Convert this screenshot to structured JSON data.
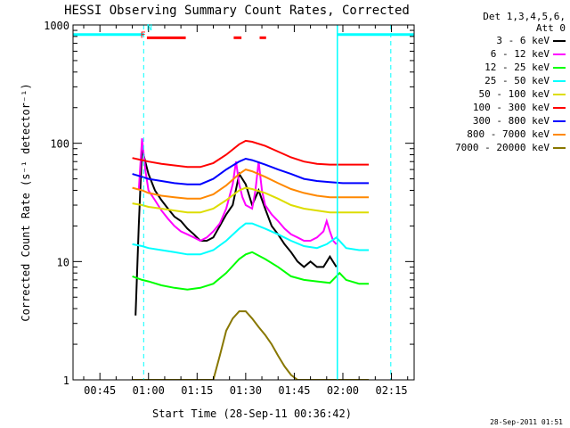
{
  "chart_data": {
    "type": "line",
    "title": "HESSI Observing Summary Count Rates, Corrected",
    "xlabel": "Start Time (28-Sep-11 00:36:42)",
    "ylabel": "Corrected Count Rate (s⁻¹ detector⁻¹)",
    "yscale": "log",
    "ylim": [
      1,
      1000
    ],
    "xlim_minutes": [
      36.7,
      142
    ],
    "x_tick_labels": [
      "00:45",
      "01:00",
      "01:15",
      "01:30",
      "01:45",
      "02:00",
      "02:15"
    ],
    "x_tick_minutes": [
      45,
      60,
      75,
      90,
      105,
      120,
      135
    ],
    "y_tick_labels": [
      "1",
      "10",
      "100",
      "1000"
    ],
    "y_tick_values": [
      1,
      10,
      100,
      1000
    ],
    "legend_header": [
      "Det 1,3,4,5,6,",
      "Att 0"
    ],
    "legend_position": "right",
    "series": [
      {
        "name": "3 - 6 keV",
        "color": "#000000",
        "x": [
          56,
          57,
          58,
          59,
          60,
          62,
          64,
          66,
          68,
          70,
          72,
          74,
          76,
          78,
          80,
          82,
          84,
          86,
          88,
          90,
          92,
          94,
          96,
          98,
          100,
          102,
          104,
          106,
          108,
          110,
          112,
          114,
          116,
          118
        ],
        "y": [
          3.5,
          20,
          90,
          70,
          55,
          40,
          33,
          28,
          24,
          22,
          19,
          17,
          15,
          15,
          16,
          20,
          25,
          30,
          55,
          45,
          30,
          40,
          28,
          20,
          17,
          14,
          12,
          10,
          9,
          10,
          9,
          9,
          11,
          9
        ]
      },
      {
        "name": "6 - 12 keV",
        "color": "#ff00ff",
        "x": [
          57,
          58,
          59,
          60,
          62,
          64,
          66,
          68,
          70,
          72,
          74,
          76,
          78,
          80,
          82,
          84,
          86,
          87,
          88,
          89,
          90,
          92,
          93,
          94,
          95,
          96,
          98,
          100,
          102,
          104,
          106,
          108,
          110,
          112,
          114,
          115,
          116,
          117,
          118
        ],
        "y": [
          40,
          110,
          60,
          40,
          33,
          27,
          23,
          20,
          18,
          17,
          16,
          15,
          16,
          18,
          21,
          28,
          45,
          70,
          45,
          35,
          30,
          28,
          40,
          70,
          40,
          30,
          25,
          22,
          19,
          17,
          16,
          15,
          15,
          16,
          18,
          22,
          18,
          15,
          14
        ]
      },
      {
        "name": "12 - 25 keV",
        "color": "#00ff00",
        "x": [
          55,
          58,
          60,
          64,
          68,
          72,
          76,
          80,
          84,
          88,
          90,
          92,
          96,
          100,
          104,
          108,
          112,
          116,
          119,
          121,
          125,
          128
        ],
        "y": [
          7.5,
          7,
          6.8,
          6.3,
          6,
          5.8,
          6,
          6.5,
          8,
          10.5,
          11.5,
          12,
          10.5,
          9,
          7.5,
          7,
          6.8,
          6.6,
          8,
          7,
          6.5,
          6.5
        ]
      },
      {
        "name": "25 - 50 keV",
        "color": "#00ffff",
        "x": [
          55,
          58,
          60,
          64,
          68,
          72,
          76,
          80,
          84,
          88,
          90,
          92,
          96,
          100,
          104,
          108,
          112,
          115,
          118,
          121,
          125,
          128
        ],
        "y": [
          14,
          13.5,
          13,
          12.5,
          12,
          11.5,
          11.5,
          12.5,
          15,
          19,
          21,
          21,
          19,
          17,
          15,
          13.5,
          13,
          14,
          16,
          13,
          12.5,
          12.5
        ]
      },
      {
        "name": "50 - 100 keV",
        "color": "#dddd00",
        "x": [
          55,
          58,
          60,
          64,
          68,
          72,
          76,
          80,
          84,
          88,
          90,
          92,
          96,
          100,
          104,
          108,
          112,
          116,
          120,
          124,
          128
        ],
        "y": [
          31,
          30,
          29,
          28,
          27,
          26,
          26,
          28,
          33,
          40,
          42,
          41,
          38,
          34,
          30,
          28,
          27,
          26,
          26,
          26,
          26
        ]
      },
      {
        "name": "100 - 300 keV",
        "color": "#ff0000",
        "x": [
          55,
          58,
          60,
          64,
          68,
          72,
          76,
          80,
          84,
          88,
          90,
          92,
          96,
          100,
          104,
          108,
          112,
          116,
          120,
          124,
          128
        ],
        "y": [
          75,
          72,
          70,
          67,
          65,
          63,
          63,
          68,
          80,
          98,
          105,
          103,
          95,
          85,
          76,
          70,
          67,
          66,
          66,
          66,
          66
        ]
      },
      {
        "name": "300 - 800 keV",
        "color": "#0000ff",
        "x": [
          55,
          58,
          60,
          64,
          68,
          72,
          76,
          80,
          84,
          88,
          90,
          92,
          96,
          100,
          104,
          108,
          112,
          116,
          120,
          124,
          128
        ],
        "y": [
          55,
          52,
          50,
          48,
          46,
          45,
          45,
          50,
          60,
          70,
          74,
          72,
          66,
          60,
          55,
          50,
          48,
          47,
          46,
          46,
          46
        ]
      },
      {
        "name": "800 - 7000 keV",
        "color": "#ff8800",
        "x": [
          55,
          58,
          60,
          64,
          68,
          72,
          76,
          80,
          84,
          88,
          90,
          92,
          96,
          100,
          104,
          108,
          112,
          116,
          120,
          124,
          128
        ],
        "y": [
          42,
          40,
          38,
          36,
          35,
          34,
          34,
          37,
          44,
          55,
          60,
          58,
          52,
          46,
          41,
          38,
          36,
          35,
          35,
          35,
          35
        ]
      },
      {
        "name": "7000 - 20000 keV",
        "color": "#887700",
        "x": [
          55,
          60,
          64,
          68,
          72,
          76,
          80,
          82,
          84,
          86,
          88,
          90,
          92,
          94,
          96,
          98,
          100,
          102,
          104,
          106,
          108,
          110,
          112,
          116,
          120,
          124,
          128
        ],
        "y": [
          1,
          1,
          1,
          1,
          1,
          1,
          1,
          1.6,
          2.6,
          3.3,
          3.8,
          3.8,
          3.3,
          2.8,
          2.4,
          2,
          1.6,
          1.3,
          1.1,
          1,
          1,
          1,
          1,
          1,
          1,
          1,
          1
        ]
      }
    ],
    "annotations": [
      {
        "text": "F",
        "color": "#ff0000",
        "x_minutes": 58.3,
        "y": 780
      },
      {
        "text": "N",
        "color": "#00ffff",
        "x_minutes": 60.3,
        "y": 900
      }
    ],
    "flag_bars": [
      {
        "color": "#ff0000",
        "y": 780,
        "x_start_minutes": 59.5,
        "x_end_minutes": 71.5
      },
      {
        "color": "#ff0000",
        "y": 780,
        "x_start_minutes": 86.3,
        "x_end_minutes": 88.7
      },
      {
        "color": "#ff0000",
        "y": 780,
        "x_start_minutes": 94.3,
        "x_end_minutes": 96.3
      },
      {
        "color": "#00ffff",
        "y": 830,
        "x_start_minutes": 36.7,
        "x_end_minutes": 58.5
      },
      {
        "color": "#00ffff",
        "y": 830,
        "x_start_minutes": 118.5,
        "x_end_minutes": 142
      }
    ],
    "vlines_dashed_minutes": [
      58.5,
      134.8
    ],
    "vlines_solid_minutes": [
      118.3
    ],
    "grid": false
  },
  "timestamp": "28-Sep-2011 01:51"
}
